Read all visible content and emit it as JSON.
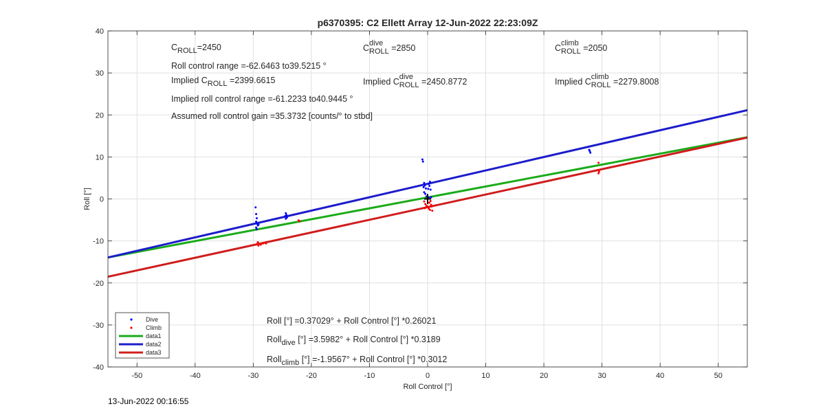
{
  "chart_data": {
    "type": "scatter",
    "title": "p6370395: C2 Ellett Array 12-Jun-2022 22:23:09Z",
    "xlabel": "Roll Control [°]",
    "ylabel": "Roll [°]",
    "xlim": [
      -55,
      55
    ],
    "ylim": [
      -40,
      40
    ],
    "xticks": [
      -50,
      -40,
      -30,
      -20,
      -10,
      0,
      10,
      20,
      30,
      40,
      50
    ],
    "yticks": [
      -40,
      -30,
      -20,
      -10,
      0,
      10,
      20,
      30,
      40
    ],
    "grid": true,
    "legend_position": "bottom-left",
    "legend": [
      "Dive",
      "Climb",
      "data1",
      "data2",
      "data3"
    ],
    "colors": {
      "dive": "#0000ff",
      "climb": "#ff0000",
      "data1": "#1aab1a",
      "data2": "#1c1ccc",
      "data3": "#d01c1c"
    },
    "series": [
      {
        "name": "Dive",
        "kind": "points",
        "color": "#0000ff",
        "points": [
          [
            -29.6,
            -2
          ],
          [
            -29.5,
            -3.6
          ],
          [
            -29.4,
            -4.6
          ],
          [
            -29.5,
            -5.4
          ],
          [
            -29.3,
            -5.9
          ],
          [
            -29.2,
            -6.3
          ],
          [
            -29.5,
            -6.8
          ],
          [
            -29.4,
            -7.2
          ],
          [
            -29.1,
            -6.1
          ],
          [
            -24.4,
            -3.4
          ],
          [
            -24.3,
            -3.8
          ],
          [
            -24.5,
            -4.1
          ],
          [
            -24.2,
            -4.4
          ],
          [
            -24.4,
            -4.7
          ],
          [
            -0.9,
            9.4
          ],
          [
            -0.8,
            8.9
          ],
          [
            -0.6,
            3.8
          ],
          [
            -0.5,
            3.2
          ],
          [
            -0.7,
            2.8
          ],
          [
            -0.3,
            2.5
          ],
          [
            -0.6,
            1.6
          ],
          [
            -0.4,
            1.2
          ],
          [
            0.2,
            3.6
          ],
          [
            0.3,
            3.1
          ],
          [
            0.4,
            4.1
          ],
          [
            0.1,
            2.4
          ],
          [
            0.5,
            2.2
          ],
          [
            -0.2,
            0.6
          ],
          [
            0.2,
            0.3
          ],
          [
            0.6,
            0.4
          ],
          [
            27.9,
            11.4
          ],
          [
            28,
            11.0
          ],
          [
            27.8,
            11.7
          ]
        ]
      },
      {
        "name": "Climb",
        "kind": "points",
        "color": "#ff0000",
        "points": [
          [
            -29.2,
            -10.3
          ],
          [
            -29.3,
            -10.7
          ],
          [
            -29.1,
            -11.1
          ],
          [
            -28.7,
            -10.9
          ],
          [
            -28.3,
            -10.6
          ],
          [
            -27.8,
            -10.6
          ],
          [
            -22.2,
            -5.1
          ],
          [
            -22,
            -5.3
          ],
          [
            -0.6,
            -0.6
          ],
          [
            -0.4,
            -1.2
          ],
          [
            -0.2,
            -1.6
          ],
          [
            0,
            -1.9
          ],
          [
            0.2,
            -2.3
          ],
          [
            0.4,
            -2.6
          ],
          [
            0.6,
            -1.4
          ],
          [
            0.8,
            -2.8
          ],
          [
            -0.5,
            -2.2
          ],
          [
            0.3,
            -0.9
          ],
          [
            0.7,
            -1.8
          ],
          [
            0.5,
            -0.5
          ],
          [
            29.4,
            8.6
          ],
          [
            29.3,
            6.9
          ],
          [
            29.5,
            6.5
          ],
          [
            29.4,
            6.1
          ]
        ]
      },
      {
        "name": "data1",
        "kind": "line",
        "color": "#1aab1a",
        "x": [
          -55,
          55
        ],
        "y": [
          -13.94,
          14.68
        ]
      },
      {
        "name": "data2",
        "kind": "line",
        "color": "#1c1ccc",
        "x": [
          -55,
          55
        ],
        "y": [
          -13.94,
          21.14
        ]
      },
      {
        "name": "data3",
        "kind": "line",
        "color": "#d01c1c",
        "x": [
          -55,
          55
        ],
        "y": [
          -18.52,
          14.61
        ]
      }
    ],
    "annotations": {
      "top_left": {
        "c_roll": {
          "base": "C",
          "sub": "ROLL",
          "value": "=2450"
        },
        "range": "Roll control range =-62.6463 to39.5215 °",
        "implied": {
          "prefix": "Implied C",
          "sub": "ROLL",
          "value": " =2399.6615"
        },
        "implied_range": "Implied roll control range =-61.2233 to40.9445 °",
        "gain": "Assumed roll control gain =35.3732 [counts/° to stbd]"
      },
      "top_mid": {
        "c": {
          "base": "C",
          "sub": "ROLL",
          "sup": "dive",
          "value": " =2850"
        },
        "implied": {
          "prefix": "Implied C",
          "sub": "ROLL",
          "sup": "dive",
          "value": " =2450.8772"
        }
      },
      "top_right": {
        "c": {
          "base": "C",
          "sub": "ROLL",
          "sup": "climb",
          "value": " =2050"
        },
        "implied": {
          "prefix": "Implied C",
          "sub": "ROLL",
          "sup": "climb",
          "value": " =2279.8008"
        }
      },
      "equations": {
        "all": {
          "prefix": "Roll",
          "sub": "",
          "text": " [°] =0.37029° + Roll Control [°] *0.26021"
        },
        "dive": {
          "prefix": "Roll",
          "sub": "dive",
          "text": " [°] =3.5982° + Roll Control [°] *0.3189"
        },
        "climb": {
          "prefix": "Roll",
          "sub": "climb",
          "text": " [°] =-1.9567° + Roll Control [°] *0.3012"
        }
      }
    }
  },
  "footer": {
    "timestamp": "13-Jun-2022 00:16:55"
  }
}
